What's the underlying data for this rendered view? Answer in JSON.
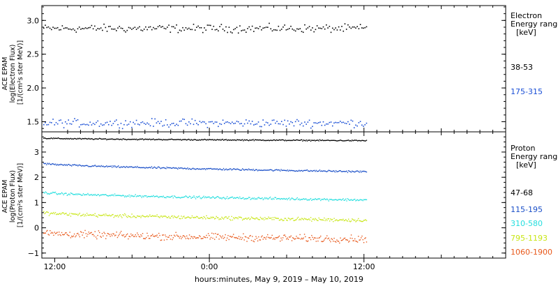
{
  "chart_data": [
    {
      "type": "scatter",
      "instrument": "ACE EPAM",
      "ylabel_lines": [
        "ACE EPAM",
        "log(Electron Flux)",
        "[1/(cm²s ster MeV)]"
      ],
      "legend_title_lines": [
        "Electron",
        "Energy range",
        "[keV]"
      ],
      "ylim": [
        1.35,
        3.22
      ],
      "yticks": [
        1.5,
        2.0,
        2.5,
        3.0
      ],
      "ytick_labels": [
        "1.5",
        "2.0",
        "2.5",
        "3.0"
      ],
      "series": [
        {
          "name": "38-53",
          "color": "#000000",
          "mean": 2.88,
          "spread": 0.05,
          "start": 2.88,
          "end": 2.88
        },
        {
          "name": "175-315",
          "color": "#1a4fd6",
          "mean": 1.48,
          "spread": 0.05,
          "start": 1.48,
          "end": 1.48
        }
      ]
    },
    {
      "type": "scatter",
      "instrument": "ACE EPAM",
      "ylabel_lines": [
        "ACE EPAM",
        "log(Proton Flux)",
        "[1/(cm²s ster MeV)]"
      ],
      "legend_title_lines": [
        "Proton",
        "Energy range",
        "[keV]"
      ],
      "ylim": [
        -1.2,
        3.8
      ],
      "yticks": [
        -1,
        0,
        1,
        2,
        3
      ],
      "ytick_labels": [
        "−1",
        "0",
        "1",
        "2",
        "3"
      ],
      "series": [
        {
          "name": "47-68",
          "color": "#000000",
          "start": 3.55,
          "end": 3.45,
          "spread": 0.02
        },
        {
          "name": "115-195",
          "color": "#1a4fc8",
          "start": 2.55,
          "end": 2.22,
          "spread": 0.03
        },
        {
          "name": "310-580",
          "color": "#22dede",
          "start": 1.4,
          "end": 1.1,
          "spread": 0.04
        },
        {
          "name": "795-1193",
          "color": "#c8e615",
          "start": 0.6,
          "end": 0.3,
          "spread": 0.06
        },
        {
          "name": "1060-1900",
          "color": "#e8581a",
          "start": -0.2,
          "end": -0.45,
          "spread": 0.12
        }
      ]
    }
  ],
  "x_axis": {
    "tick_labels": [
      "12:00",
      "0:00",
      "12:00"
    ],
    "tick_hours": [
      12,
      24,
      36
    ],
    "range_hours": [
      11,
      47
    ],
    "data_end_hour": 36.2,
    "xlabel": "hours:minutes, May  9, 2019 – May 10, 2019"
  }
}
